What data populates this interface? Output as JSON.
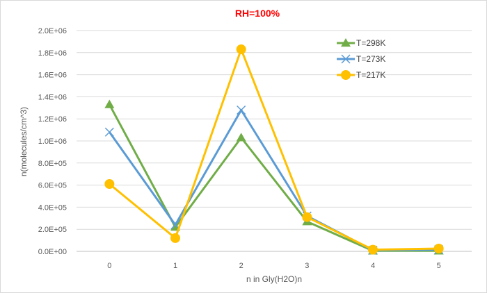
{
  "chart_data": {
    "type": "line",
    "title": "RH=100%",
    "title_color": "#ff0000",
    "xlabel": "n in Gly(H2O)n",
    "ylabel": "n(molecules/cm^3)",
    "categories": [
      "0",
      "1",
      "2",
      "3",
      "4",
      "5"
    ],
    "x": [
      0,
      1,
      2,
      3,
      4,
      5
    ],
    "ylim": [
      0,
      2000000
    ],
    "yticks": [
      0,
      200000,
      400000,
      600000,
      800000,
      1000000,
      1200000,
      1400000,
      1600000,
      1800000,
      2000000
    ],
    "ytick_labels": [
      "0.0E+00",
      "2.0E+05",
      "4.0E+05",
      "6.0E+05",
      "8.0E+05",
      "1.0E+06",
      "1.2E+06",
      "1.4E+06",
      "1.6E+06",
      "1.8E+06",
      "2.0E+06"
    ],
    "grid": true,
    "legend_position": "top-right",
    "series": [
      {
        "name": "T=298K",
        "color": "#70ad47",
        "marker": "triangle",
        "values": [
          1330000,
          220000,
          1030000,
          270000,
          5000,
          5000
        ]
      },
      {
        "name": "T=273K",
        "color": "#5b9bd5",
        "marker": "x",
        "values": [
          1080000,
          240000,
          1280000,
          320000,
          10000,
          15000
        ]
      },
      {
        "name": "T=217K",
        "color": "#ffc000",
        "marker": "circle",
        "values": [
          610000,
          120000,
          1830000,
          310000,
          15000,
          25000
        ]
      }
    ]
  }
}
